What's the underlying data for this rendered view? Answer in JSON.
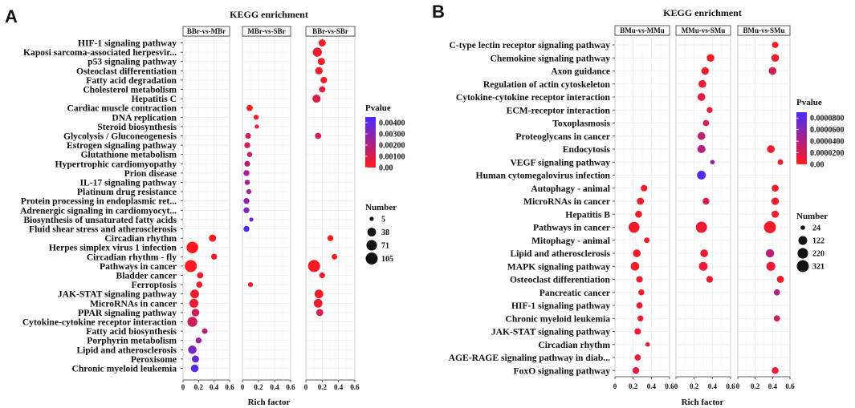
{
  "colors": {
    "high": "#ff1a1a",
    "low": "#4a2bff"
  },
  "chart_data": [
    {
      "type": "scatter",
      "panel_label": "A",
      "title": "KEGG enrichment",
      "xlabel": "Rich factor",
      "xlim": [
        0,
        0.6
      ],
      "xticks": [
        "0",
        "0.2",
        "0.4",
        "0.6"
      ],
      "facets": [
        "BBr-vs-MBr",
        "MBr-vs-SBr",
        "BBr-vs-SBr"
      ],
      "terms": [
        "HIF-1 signaling pathway",
        "Kaposi sarcoma-associated herpesvir...",
        "p53 signaling pathway",
        "Osteoclast differentiation",
        "Fatty acid degradation",
        "Cholesterol metabolism",
        "Hepatitis C",
        "Cardiac muscle contraction",
        "DNA replication",
        "Steroid biosynthesis",
        "Glycolysis / Gluconeogenesis",
        "Estrogen signaling pathway",
        "Glutathione metabolism",
        "Hypertrophic cardiomyopathy",
        "Prion disease",
        "IL-17 signaling pathway",
        "Platinum drug resistance",
        "Protein processing in endoplasmic ret...",
        "Adrenergic signaling in cardiomyocyt...",
        "Biosynthesis of unsaturated fatty acids",
        "Fluid shear stress and atherosclerosis",
        "Circadian rhythm",
        "Herpes simplex virus 1 infection",
        "Circadian rhythm - fly",
        "Pathways in cancer",
        "Bladder cancer",
        "Ferroptosis",
        "JAK-STAT signaling pathway",
        "MicroRNAs in cancer",
        "PPAR signaling pathway",
        "Cytokine-cytokine receptor interaction",
        "Fatty acid biosynthesis",
        "Porphyrin metabolism",
        "Lipid and atherosclerosis",
        "Peroxisome",
        "Chronic myeloid leukemia"
      ],
      "pvalue_legend": {
        "title": "Pvalue",
        "max": 0.0045,
        "ticks": [
          0.004,
          0.003,
          0.002,
          0.001,
          0.0
        ],
        "labels": [
          "0.00400",
          "0.00300",
          "0.00200",
          "0.00100",
          "0.00"
        ]
      },
      "size_legend": {
        "title": "Number",
        "min": 5,
        "max": 105,
        "values": [
          5,
          38,
          71,
          105
        ],
        "labels": [
          "5",
          "38",
          "71",
          "105"
        ]
      },
      "points": [
        {
          "facet": 2,
          "term": 0,
          "x": 0.2,
          "n": 20,
          "p": 0.0002
        },
        {
          "facet": 2,
          "term": 1,
          "x": 0.14,
          "n": 45,
          "p": 0.0004
        },
        {
          "facet": 2,
          "term": 2,
          "x": 0.19,
          "n": 20,
          "p": 0.0002
        },
        {
          "facet": 2,
          "term": 3,
          "x": 0.16,
          "n": 22,
          "p": 0.0004
        },
        {
          "facet": 2,
          "term": 4,
          "x": 0.22,
          "n": 14,
          "p": 0.0002
        },
        {
          "facet": 2,
          "term": 5,
          "x": 0.2,
          "n": 12,
          "p": 0.0005
        },
        {
          "facet": 2,
          "term": 6,
          "x": 0.13,
          "n": 30,
          "p": 0.0009
        },
        {
          "facet": 1,
          "term": 7,
          "x": 0.09,
          "n": 12,
          "p": 0.0002
        },
        {
          "facet": 1,
          "term": 8,
          "x": 0.17,
          "n": 6,
          "p": 0.0004
        },
        {
          "facet": 1,
          "term": 9,
          "x": 0.18,
          "n": 5,
          "p": 0.0006
        },
        {
          "facet": 1,
          "term": 10,
          "x": 0.07,
          "n": 9,
          "p": 0.0011
        },
        {
          "facet": 2,
          "term": 10,
          "x": 0.15,
          "n": 12,
          "p": 0.0012
        },
        {
          "facet": 1,
          "term": 11,
          "x": 0.06,
          "n": 10,
          "p": 0.0013
        },
        {
          "facet": 1,
          "term": 12,
          "x": 0.09,
          "n": 7,
          "p": 0.0016
        },
        {
          "facet": 1,
          "term": 13,
          "x": 0.06,
          "n": 9,
          "p": 0.0019
        },
        {
          "facet": 1,
          "term": 14,
          "x": 0.05,
          "n": 10,
          "p": 0.0022
        },
        {
          "facet": 1,
          "term": 15,
          "x": 0.06,
          "n": 7,
          "p": 0.0022
        },
        {
          "facet": 1,
          "term": 16,
          "x": 0.08,
          "n": 6,
          "p": 0.0024
        },
        {
          "facet": 1,
          "term": 17,
          "x": 0.05,
          "n": 10,
          "p": 0.0028
        },
        {
          "facet": 1,
          "term": 18,
          "x": 0.05,
          "n": 10,
          "p": 0.0031
        },
        {
          "facet": 1,
          "term": 19,
          "x": 0.11,
          "n": 5,
          "p": 0.0035
        },
        {
          "facet": 1,
          "term": 20,
          "x": 0.05,
          "n": 10,
          "p": 0.0043
        },
        {
          "facet": 0,
          "term": 21,
          "x": 0.38,
          "n": 20,
          "p": 0.0001
        },
        {
          "facet": 2,
          "term": 21,
          "x": 0.3,
          "n": 10,
          "p": 0.0001
        },
        {
          "facet": 0,
          "term": 22,
          "x": 0.12,
          "n": 95,
          "p": 0.0001
        },
        {
          "facet": 0,
          "term": 23,
          "x": 0.4,
          "n": 10,
          "p": 0.0002
        },
        {
          "facet": 2,
          "term": 23,
          "x": 0.35,
          "n": 8,
          "p": 0.0002
        },
        {
          "facet": 0,
          "term": 24,
          "x": 0.1,
          "n": 105,
          "p": 0.0001
        },
        {
          "facet": 2,
          "term": 24,
          "x": 0.1,
          "n": 105,
          "p": 0.0002
        },
        {
          "facet": 0,
          "term": 25,
          "x": 0.22,
          "n": 12,
          "p": 0.0003
        },
        {
          "facet": 2,
          "term": 25,
          "x": 0.2,
          "n": 9,
          "p": 0.0003
        },
        {
          "facet": 0,
          "term": 26,
          "x": 0.21,
          "n": 12,
          "p": 0.0003
        },
        {
          "facet": 1,
          "term": 26,
          "x": 0.1,
          "n": 6,
          "p": 0.0003
        },
        {
          "facet": 0,
          "term": 27,
          "x": 0.15,
          "n": 38,
          "p": 0.0004
        },
        {
          "facet": 2,
          "term": 27,
          "x": 0.16,
          "n": 38,
          "p": 0.0003
        },
        {
          "facet": 0,
          "term": 28,
          "x": 0.14,
          "n": 42,
          "p": 0.0005
        },
        {
          "facet": 2,
          "term": 28,
          "x": 0.15,
          "n": 38,
          "p": 0.0004
        },
        {
          "facet": 0,
          "term": 29,
          "x": 0.16,
          "n": 25,
          "p": 0.0012
        },
        {
          "facet": 2,
          "term": 29,
          "x": 0.17,
          "n": 18,
          "p": 0.001
        },
        {
          "facet": 0,
          "term": 30,
          "x": 0.12,
          "n": 60,
          "p": 0.0013
        },
        {
          "facet": 0,
          "term": 31,
          "x": 0.28,
          "n": 8,
          "p": 0.0019
        },
        {
          "facet": 0,
          "term": 32,
          "x": 0.2,
          "n": 10,
          "p": 0.0025
        },
        {
          "facet": 0,
          "term": 33,
          "x": 0.12,
          "n": 35,
          "p": 0.0033
        },
        {
          "facet": 0,
          "term": 34,
          "x": 0.16,
          "n": 20,
          "p": 0.0036
        },
        {
          "facet": 0,
          "term": 35,
          "x": 0.15,
          "n": 25,
          "p": 0.0041
        }
      ]
    },
    {
      "type": "scatter",
      "panel_label": "B",
      "title": "KEGG enrichment",
      "xlabel": "Rich factor",
      "xlim": [
        0,
        0.6
      ],
      "xticks": [
        "0",
        "0.2",
        "0.4",
        "0.6"
      ],
      "facets": [
        "BMu-vs-MMu",
        "MMu-vs-SMu",
        "BMu-vs-SMu"
      ],
      "terms": [
        "C-type lectin receptor signaling pathway",
        "Chemokine signaling pathway",
        "Axon guidance",
        "Regulation of actin cytoskeleton",
        "Cytokine-cytokine receptor interaction",
        "ECM-receptor interaction",
        "Toxoplasmosis",
        "Proteoglycans in cancer",
        "Endocytosis",
        "VEGF signaling pathway",
        "Human cytomegalovirus infection",
        "Autophagy - animal",
        "MicroRNAs in cancer",
        "Hepatitis B",
        "Pathways in cancer",
        "Mitophagy - animal",
        "Lipid and atherosclerosis",
        "MAPK signaling pathway",
        "Osteoclast differentiation",
        "Pancreatic cancer",
        "HIF-1 signaling pathway",
        "Chronic myeloid leukemia",
        "JAK-STAT signaling pathway",
        "Circadian rhythm",
        "AGE-RAGE signaling pathway in diab...",
        "FoxO signaling pathway"
      ],
      "pvalue_legend": {
        "title": "Pvalue",
        "max": 9e-05,
        "ticks": [
          8e-05,
          6e-05,
          4e-05,
          2e-05,
          0.0
        ],
        "labels": [
          "0.0000800",
          "0.0000600",
          "0.0000400",
          "0.0000200",
          "0.00"
        ]
      },
      "size_legend": {
        "title": "Number",
        "min": 24,
        "max": 321,
        "values": [
          24,
          122,
          220,
          321
        ],
        "labels": [
          "24",
          "122",
          "220",
          "321"
        ]
      },
      "points": [
        {
          "facet": 2,
          "term": 0,
          "x": 0.43,
          "n": 40,
          "p": 5e-06
        },
        {
          "facet": 1,
          "term": 1,
          "x": 0.38,
          "n": 75,
          "p": 5e-06
        },
        {
          "facet": 2,
          "term": 1,
          "x": 0.43,
          "n": 75,
          "p": 8e-06
        },
        {
          "facet": 1,
          "term": 2,
          "x": 0.32,
          "n": 70,
          "p": 8e-06
        },
        {
          "facet": 2,
          "term": 2,
          "x": 0.4,
          "n": 80,
          "p": 2.2e-05
        },
        {
          "facet": 1,
          "term": 3,
          "x": 0.29,
          "n": 80,
          "p": 1.2e-05
        },
        {
          "facet": 1,
          "term": 4,
          "x": 0.28,
          "n": 80,
          "p": 1.5e-05
        },
        {
          "facet": 1,
          "term": 5,
          "x": 0.37,
          "n": 35,
          "p": 1.5e-05
        },
        {
          "facet": 1,
          "term": 6,
          "x": 0.33,
          "n": 40,
          "p": 2e-05
        },
        {
          "facet": 1,
          "term": 7,
          "x": 0.28,
          "n": 80,
          "p": 3e-05
        },
        {
          "facet": 1,
          "term": 8,
          "x": 0.28,
          "n": 90,
          "p": 4e-05
        },
        {
          "facet": 2,
          "term": 8,
          "x": 0.38,
          "n": 80,
          "p": 8e-06
        },
        {
          "facet": 1,
          "term": 9,
          "x": 0.4,
          "n": 24,
          "p": 5.5e-05
        },
        {
          "facet": 2,
          "term": 9,
          "x": 0.49,
          "n": 30,
          "p": 1e-05
        },
        {
          "facet": 1,
          "term": 10,
          "x": 0.28,
          "n": 120,
          "p": 8.5e-05
        },
        {
          "facet": 0,
          "term": 11,
          "x": 0.32,
          "n": 45,
          "p": 5e-06
        },
        {
          "facet": 2,
          "term": 11,
          "x": 0.43,
          "n": 55,
          "p": 8e-06
        },
        {
          "facet": 0,
          "term": 12,
          "x": 0.28,
          "n": 60,
          "p": 8e-06
        },
        {
          "facet": 1,
          "term": 12,
          "x": 0.33,
          "n": 50,
          "p": 1.8e-05
        },
        {
          "facet": 2,
          "term": 12,
          "x": 0.43,
          "n": 70,
          "p": 1e-05
        },
        {
          "facet": 0,
          "term": 13,
          "x": 0.26,
          "n": 55,
          "p": 6e-06
        },
        {
          "facet": 2,
          "term": 13,
          "x": 0.43,
          "n": 60,
          "p": 8e-06
        },
        {
          "facet": 0,
          "term": 14,
          "x": 0.21,
          "n": 240,
          "p": 6e-06
        },
        {
          "facet": 1,
          "term": 14,
          "x": 0.28,
          "n": 260,
          "p": 1e-05
        },
        {
          "facet": 2,
          "term": 14,
          "x": 0.37,
          "n": 321,
          "p": 8e-06
        },
        {
          "facet": 0,
          "term": 15,
          "x": 0.35,
          "n": 30,
          "p": 8e-06
        },
        {
          "facet": 0,
          "term": 16,
          "x": 0.24,
          "n": 80,
          "p": 8e-06
        },
        {
          "facet": 1,
          "term": 16,
          "x": 0.31,
          "n": 80,
          "p": 1e-05
        },
        {
          "facet": 2,
          "term": 16,
          "x": 0.37,
          "n": 100,
          "p": 3.5e-05
        },
        {
          "facet": 0,
          "term": 17,
          "x": 0.22,
          "n": 110,
          "p": 5e-06
        },
        {
          "facet": 1,
          "term": 17,
          "x": 0.3,
          "n": 120,
          "p": 1e-05
        },
        {
          "facet": 2,
          "term": 17,
          "x": 0.38,
          "n": 130,
          "p": 1e-05
        },
        {
          "facet": 0,
          "term": 18,
          "x": 0.27,
          "n": 45,
          "p": 6e-06
        },
        {
          "facet": 1,
          "term": 18,
          "x": 0.37,
          "n": 50,
          "p": 8e-06
        },
        {
          "facet": 2,
          "term": 18,
          "x": 0.49,
          "n": 60,
          "p": 6e-06
        },
        {
          "facet": 0,
          "term": 19,
          "x": 0.29,
          "n": 35,
          "p": 8e-06
        },
        {
          "facet": 2,
          "term": 19,
          "x": 0.45,
          "n": 40,
          "p": 4e-05
        },
        {
          "facet": 0,
          "term": 20,
          "x": 0.27,
          "n": 40,
          "p": 8e-06
        },
        {
          "facet": 0,
          "term": 21,
          "x": 0.28,
          "n": 35,
          "p": 8e-06
        },
        {
          "facet": 2,
          "term": 21,
          "x": 0.45,
          "n": 40,
          "p": 2.5e-05
        },
        {
          "facet": 0,
          "term": 22,
          "x": 0.25,
          "n": 45,
          "p": 8e-06
        },
        {
          "facet": 0,
          "term": 23,
          "x": 0.36,
          "n": 24,
          "p": 1.2e-05
        },
        {
          "facet": 0,
          "term": 24,
          "x": 0.25,
          "n": 40,
          "p": 1.2e-05
        },
        {
          "facet": 0,
          "term": 25,
          "x": 0.23,
          "n": 50,
          "p": 1.5e-05
        },
        {
          "facet": 2,
          "term": 25,
          "x": 0.43,
          "n": 50,
          "p": 1e-05
        }
      ]
    }
  ]
}
